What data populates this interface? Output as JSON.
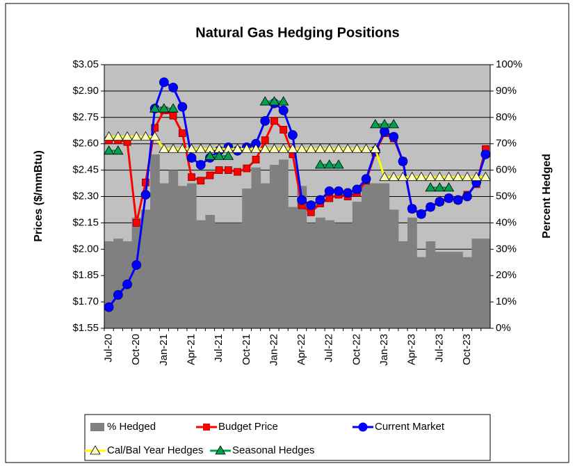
{
  "chart_data": {
    "type": "combo",
    "title": "Natural Gas Hedging Positions",
    "y_label": "Prices ($/mmBtu)",
    "y2_label": "Percent Hedged",
    "categories": [
      "Jul-20",
      null,
      null,
      "Oct-20",
      null,
      null,
      "Jan-21",
      null,
      null,
      "Apr-21",
      null,
      null,
      "Jul-21",
      null,
      null,
      "Oct-21",
      null,
      null,
      "Jan-22",
      null,
      null,
      "Apr-22",
      null,
      null,
      "Jul-22",
      null,
      null,
      "Oct-22",
      null,
      null,
      "Jan-23",
      null,
      null,
      "Apr-23",
      null,
      null,
      "Jul-23",
      null,
      null,
      "Oct-23",
      null,
      null
    ],
    "ylim": [
      1.55,
      3.05
    ],
    "yticks": [
      {
        "value": 1.55,
        "label": "$1.55"
      },
      {
        "value": 1.7,
        "label": "$1.70"
      },
      {
        "value": 1.85,
        "label": "$1.85"
      },
      {
        "value": 2.0,
        "label": "$2.00"
      },
      {
        "value": 2.15,
        "label": "$2.15"
      },
      {
        "value": 2.3,
        "label": "$2.30"
      },
      {
        "value": 2.45,
        "label": "$2.45"
      },
      {
        "value": 2.6,
        "label": "$2.60"
      },
      {
        "value": 2.75,
        "label": "$2.75"
      },
      {
        "value": 2.9,
        "label": "$2.90"
      },
      {
        "value": 3.05,
        "label": "$3.05"
      }
    ],
    "y2lim": [
      0,
      100
    ],
    "y2ticks": [
      {
        "value": 0,
        "label": "0%"
      },
      {
        "value": 10,
        "label": "10%"
      },
      {
        "value": 20,
        "label": "20%"
      },
      {
        "value": 30,
        "label": "30%"
      },
      {
        "value": 40,
        "label": "40%"
      },
      {
        "value": 50,
        "label": "50%"
      },
      {
        "value": 60,
        "label": "60%"
      },
      {
        "value": 70,
        "label": "70%"
      },
      {
        "value": 80,
        "label": "80%"
      },
      {
        "value": 90,
        "label": "90%"
      },
      {
        "value": 100,
        "label": "100%"
      }
    ],
    "grid": true,
    "series": [
      {
        "name": "% Hedged",
        "type": "area",
        "axis": "y2",
        "color": "#808080",
        "values": [
          33,
          34,
          33,
          42,
          45,
          66,
          55,
          60,
          54,
          55,
          41,
          43,
          40,
          40,
          40,
          53,
          61,
          55,
          62,
          64,
          46,
          54,
          40,
          42,
          41,
          40,
          40,
          48,
          55,
          55,
          55,
          45,
          33,
          42,
          27,
          33,
          29,
          29,
          29,
          27,
          34,
          34
        ]
      },
      {
        "name": "Budget Price",
        "type": "line",
        "marker": "square",
        "color": "#ff0000",
        "values": [
          2.62,
          2.62,
          2.61,
          2.15,
          2.38,
          2.69,
          2.79,
          2.76,
          2.66,
          2.41,
          2.39,
          2.42,
          2.45,
          2.45,
          2.44,
          2.46,
          2.51,
          2.62,
          2.73,
          2.68,
          2.54,
          2.25,
          2.21,
          2.26,
          2.29,
          2.31,
          2.3,
          2.32,
          2.39,
          2.55,
          2.66,
          2.63,
          2.5,
          2.23,
          2.2,
          2.24,
          2.27,
          2.29,
          2.28,
          2.31,
          2.37,
          2.57
        ]
      },
      {
        "name": "Current Market",
        "type": "line",
        "marker": "circle",
        "color": "#0000ff",
        "values": [
          1.67,
          1.74,
          1.8,
          1.91,
          2.31,
          2.8,
          2.95,
          2.92,
          2.81,
          2.52,
          2.48,
          2.52,
          2.56,
          2.58,
          2.56,
          2.58,
          2.6,
          2.73,
          2.83,
          2.79,
          2.65,
          2.28,
          2.25,
          2.28,
          2.33,
          2.33,
          2.32,
          2.34,
          2.4,
          2.56,
          2.67,
          2.64,
          2.5,
          2.23,
          2.2,
          2.24,
          2.27,
          2.29,
          2.28,
          2.3,
          2.38,
          2.54
        ]
      },
      {
        "name": "Cal/Bal Year Hedges",
        "type": "line",
        "marker": "triangle",
        "color": "#ffff00",
        "marker_color": "#ffffc0",
        "values": [
          2.64,
          2.64,
          2.64,
          2.64,
          2.64,
          2.64,
          2.57,
          2.57,
          2.57,
          2.57,
          2.57,
          2.57,
          2.57,
          2.57,
          2.57,
          2.57,
          2.57,
          2.57,
          2.57,
          2.57,
          2.57,
          2.57,
          2.57,
          2.57,
          2.57,
          2.57,
          2.57,
          2.57,
          2.57,
          2.57,
          2.41,
          2.41,
          2.41,
          2.41,
          2.41,
          2.41,
          2.41,
          2.41,
          2.41,
          2.41,
          2.41,
          2.41
        ]
      },
      {
        "name": "Seasonal Hedges",
        "type": "line",
        "marker": "triangle",
        "color": "#00a050",
        "marker_color": "#00a050",
        "values": [
          2.56,
          2.56,
          null,
          null,
          null,
          2.8,
          2.8,
          2.8,
          null,
          null,
          null,
          2.53,
          2.53,
          2.53,
          null,
          null,
          null,
          2.84,
          2.84,
          2.84,
          null,
          null,
          null,
          2.48,
          2.48,
          2.48,
          null,
          null,
          null,
          2.71,
          2.71,
          2.71,
          null,
          null,
          null,
          2.35,
          2.35,
          2.35,
          null,
          null,
          null,
          null
        ]
      }
    ]
  }
}
